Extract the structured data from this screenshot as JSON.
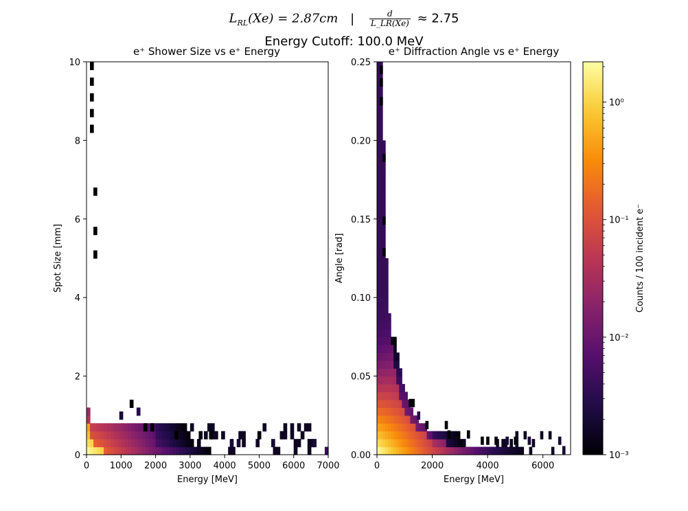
{
  "figure": {
    "rl_label": "L",
    "rl_sub": "RL",
    "rl_value": "(Xe) = 2.87cm",
    "separator": "|",
    "frac_num": "d",
    "frac_den": "L_LR(Xe)",
    "approx": "≈ 2.75",
    "cutoff": "Energy Cutoff: 100.0 MeV"
  },
  "colorbar": {
    "label": "Counts / 100 incident e⁻",
    "scale": "log",
    "vmin": 0.001,
    "vmax": 2.2,
    "tick_values": [
      0.001,
      0.01,
      0.1,
      1
    ],
    "tick_labels": [
      "10⁻³",
      "10⁻²",
      "10⁻¹",
      "10⁰"
    ],
    "colormap": "inferno"
  },
  "chart_data": [
    {
      "type": "heatmap",
      "title": "e⁺ Shower Size vs e⁺ Energy",
      "xlabel": "Energy [MeV]",
      "ylabel": "Spot Size [mm]",
      "xlim": [
        0,
        7000
      ],
      "ylim": [
        0,
        10
      ],
      "xticks": [
        0,
        1000,
        2000,
        3000,
        4000,
        5000,
        6000,
        7000
      ],
      "yticks": [
        0,
        2,
        4,
        6,
        8,
        10
      ],
      "bins_x": 70,
      "bins_y": 50,
      "decay_energy_mev": 70,
      "edge_count": 1.5,
      "edge_power": 1.4,
      "sparse_threshold": 2.0,
      "tail_rows": 4,
      "seed": 7,
      "cells": [
        {
          "x": 1000,
          "y": 1.0,
          "v": 0.002
        },
        {
          "x": 1300,
          "y": 1.3,
          "v": 0.001
        },
        {
          "x": 1500,
          "y": 1.1,
          "v": 0.003
        },
        {
          "x": 1700,
          "y": 0.7,
          "v": 0.001
        },
        {
          "x": 1900,
          "y": 0.7,
          "v": 0.001
        },
        {
          "x": 2600,
          "y": 0.5,
          "v": 0.001
        },
        {
          "x": 3300,
          "y": 0.5,
          "v": 0.001
        },
        {
          "x": 3600,
          "y": 0.5,
          "v": 0.001
        },
        {
          "x": 4200,
          "y": 0.3,
          "v": 0.002
        },
        {
          "x": 4400,
          "y": 0.3,
          "v": 0.002
        },
        {
          "x": 5000,
          "y": 0.5,
          "v": 0.001
        },
        {
          "x": 5400,
          "y": 0.3,
          "v": 0.002
        },
        {
          "x": 6600,
          "y": 0.3,
          "v": 0.002
        },
        {
          "x": 6950,
          "y": 0.1,
          "v": 0.004
        },
        {
          "x": 150,
          "y": 9.9,
          "v": 0.001
        },
        {
          "x": 150,
          "y": 9.5,
          "v": 0.001
        },
        {
          "x": 150,
          "y": 9.1,
          "v": 0.001
        },
        {
          "x": 150,
          "y": 8.7,
          "v": 0.001
        },
        {
          "x": 150,
          "y": 8.3,
          "v": 0.001
        },
        {
          "x": 250,
          "y": 6.7,
          "v": 0.001
        },
        {
          "x": 250,
          "y": 5.7,
          "v": 0.001
        },
        {
          "x": 250,
          "y": 5.1,
          "v": 0.001
        }
      ]
    },
    {
      "type": "heatmap",
      "title": "e⁺ Diffraction Angle vs e⁺ Energy",
      "xlabel": "Energy [MeV]",
      "ylabel": "Angle [rad]",
      "xlim": [
        0,
        7000
      ],
      "ylim": [
        0,
        0.25
      ],
      "xticks": [
        0,
        2000,
        4000,
        6000
      ],
      "yticks": [
        0,
        0.05,
        0.1,
        0.15,
        0.2,
        0.25
      ],
      "ytick_labels": [
        "0.00",
        "0.05",
        "0.10",
        "0.15",
        "0.20",
        "0.25"
      ],
      "bins_x": 70,
      "bins_y": 50,
      "decay_energy_mev": 40,
      "edge_count": 1.4,
      "edge_power": 1.5,
      "sparse_threshold": 0.05,
      "tail_rows": 3,
      "seed": 11,
      "cells": [
        {
          "x": 1200,
          "y": 0.033,
          "v": 0.001
        },
        {
          "x": 1300,
          "y": 0.033,
          "v": 0.001
        },
        {
          "x": 1500,
          "y": 0.025,
          "v": 0.003
        },
        {
          "x": 1800,
          "y": 0.019,
          "v": 0.001
        },
        {
          "x": 2500,
          "y": 0.019,
          "v": 0.001
        },
        {
          "x": 2600,
          "y": 0.013,
          "v": 0.001
        },
        {
          "x": 3300,
          "y": 0.013,
          "v": 0.001
        },
        {
          "x": 3800,
          "y": 0.009,
          "v": 0.001
        },
        {
          "x": 4000,
          "y": 0.009,
          "v": 0.001
        },
        {
          "x": 4300,
          "y": 0.009,
          "v": 0.001
        },
        {
          "x": 4700,
          "y": 0.009,
          "v": 0.002
        },
        {
          "x": 5000,
          "y": 0.009,
          "v": 0.001
        },
        {
          "x": 5500,
          "y": 0.009,
          "v": 0.002
        },
        {
          "x": 6600,
          "y": 0.009,
          "v": 0.002
        },
        {
          "x": 6750,
          "y": 0.003,
          "v": 0.002
        },
        {
          "x": 150,
          "y": 0.245,
          "v": 0.001
        },
        {
          "x": 150,
          "y": 0.237,
          "v": 0.001
        },
        {
          "x": 150,
          "y": 0.225,
          "v": 0.001
        },
        {
          "x": 250,
          "y": 0.189,
          "v": 0.001
        },
        {
          "x": 250,
          "y": 0.149,
          "v": 0.001
        },
        {
          "x": 250,
          "y": 0.129,
          "v": 0.001
        }
      ]
    }
  ]
}
